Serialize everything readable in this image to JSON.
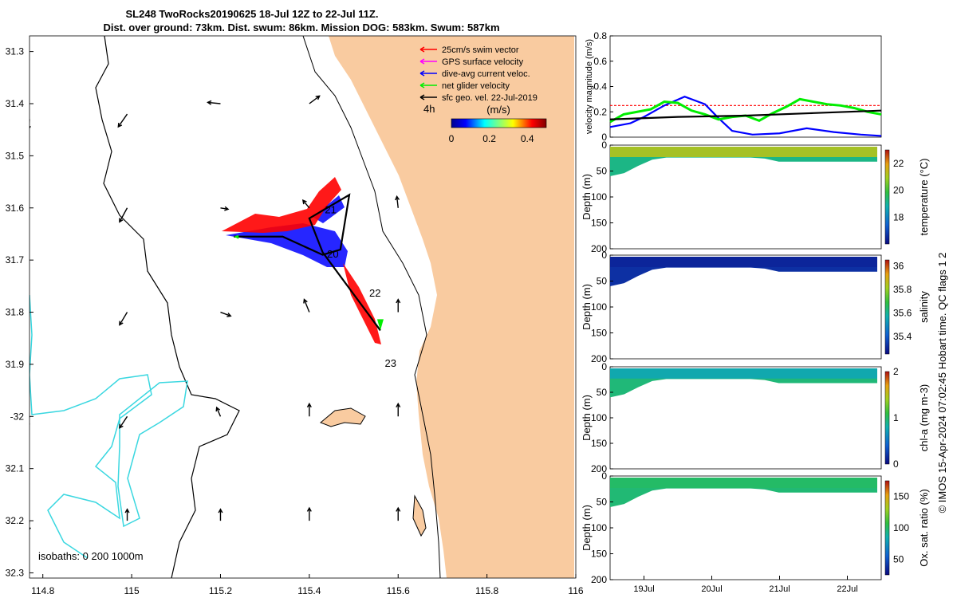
{
  "title": {
    "line1": "SL248 TwoRocks20190625 18-Jul 12Z to 22-Jul 11Z.",
    "line2": "Dist. over ground: 73km. Dist. swum: 86km. Mission DOG: 583km. Swum: 587km"
  },
  "credit": "© IMOS 15-Apr-2024 07:02:45 Hobart time. QC flags 1  2",
  "colors": {
    "land": "#f9cba0",
    "isobath_shallow": "#3ad7e0",
    "swim": "#ff0000",
    "gps": "#ff00ff",
    "current": "#0000ff",
    "net": "#00ee00",
    "geo": "#000000"
  },
  "chart_data": [
    {
      "type": "map",
      "name": "track-map",
      "xlim": [
        114.77,
        116.0
      ],
      "ylim": [
        -32.31,
        -31.27
      ],
      "xticks": [
        114.8,
        115,
        115.2,
        115.4,
        115.6,
        115.8,
        116
      ],
      "xtick_labels": [
        "114.8",
        "115",
        "115.2",
        "115.4",
        "115.6",
        "115.8",
        "116"
      ],
      "yticks": [
        -31.3,
        -31.4,
        -31.5,
        -31.6,
        -31.7,
        -31.8,
        -31.9,
        -32,
        -32.1,
        -32.2,
        -32.3
      ],
      "ytick_labels": [
        "31.3",
        "31.4",
        "31.5",
        "31.6",
        "31.7",
        "31.8",
        "31.9",
        "-32",
        "32.1",
        "32.2",
        "32.3"
      ],
      "legend": {
        "placement": "top-right",
        "entries": [
          {
            "label": "25cm/s swim vector",
            "color": "#ff0000"
          },
          {
            "label": "GPS surface velocity",
            "color": "#ff00ff"
          },
          {
            "label": "dive-avg current veloc.",
            "color": "#0000ff"
          },
          {
            "label": "net glider velocity",
            "color": "#00ee00"
          },
          {
            "label": "sfc geo. vel. 22-Jul-2019",
            "color": "#000000"
          }
        ],
        "note": "4h"
      },
      "colorbar": {
        "label": "(m/s)",
        "ticks": [
          "0",
          "0.2",
          "0.4"
        ],
        "range": [
          0,
          0.5
        ]
      },
      "isobaths_label": "isobaths: 0   200  1000m",
      "track": [
        {
          "lon": 115.23,
          "lat": -31.655
        },
        {
          "lon": 115.34,
          "lat": -31.655
        },
        {
          "lon": 115.43,
          "lat": -31.69
        },
        {
          "lon": 115.47,
          "lat": -31.68
        },
        {
          "lon": 115.49,
          "lat": -31.575
        },
        {
          "lon": 115.4,
          "lat": -31.62
        },
        {
          "lon": 115.43,
          "lat": -31.685
        },
        {
          "lon": 115.56,
          "lat": -31.835
        }
      ],
      "day_labels": [
        {
          "text": "21",
          "lon": 115.435,
          "lat": -31.61
        },
        {
          "text": "20",
          "lon": 115.44,
          "lat": -31.695
        },
        {
          "text": "22",
          "lon": 115.535,
          "lat": -31.77
        },
        {
          "text": "23",
          "lon": 115.57,
          "lat": -31.905
        }
      ],
      "geo_vectors": [
        {
          "lon": 114.77,
          "lat": -31.43,
          "u": -0.1,
          "v": -0.8
        },
        {
          "lon": 114.99,
          "lat": -31.42,
          "u": -0.7,
          "v": -1.0
        },
        {
          "lon": 115.2,
          "lat": -31.4,
          "u": -1.0,
          "v": 0.1
        },
        {
          "lon": 115.4,
          "lat": -31.4,
          "u": 0.8,
          "v": 0.6
        },
        {
          "lon": 115.6,
          "lat": -31.4,
          "u": 0.0,
          "v": 0.0
        },
        {
          "lon": 114.99,
          "lat": -31.6,
          "u": -0.6,
          "v": -1.1
        },
        {
          "lon": 115.2,
          "lat": -31.6,
          "u": 0.6,
          "v": -0.1
        },
        {
          "lon": 115.4,
          "lat": -31.6,
          "u": -0.5,
          "v": 0.6
        },
        {
          "lon": 115.6,
          "lat": -31.6,
          "u": -0.1,
          "v": 0.9
        },
        {
          "lon": 114.99,
          "lat": -31.8,
          "u": -0.6,
          "v": -1.0
        },
        {
          "lon": 115.2,
          "lat": -31.8,
          "u": 0.8,
          "v": -0.3
        },
        {
          "lon": 115.4,
          "lat": -31.8,
          "u": -0.4,
          "v": 1.0
        },
        {
          "lon": 115.6,
          "lat": -31.8,
          "u": 0.0,
          "v": 1.0
        },
        {
          "lon": 114.77,
          "lat": -32.0,
          "u": -0.2,
          "v": -0.8
        },
        {
          "lon": 114.99,
          "lat": -32.0,
          "u": -0.6,
          "v": -0.9
        },
        {
          "lon": 115.2,
          "lat": -32.0,
          "u": -0.3,
          "v": 0.7
        },
        {
          "lon": 115.4,
          "lat": -32.0,
          "u": 0.0,
          "v": 1.0
        },
        {
          "lon": 115.6,
          "lat": -32.0,
          "u": 0.0,
          "v": 1.0
        },
        {
          "lon": 114.77,
          "lat": -32.2,
          "u": -0.1,
          "v": -0.8
        },
        {
          "lon": 114.99,
          "lat": -32.2,
          "u": 0.0,
          "v": 0.9
        },
        {
          "lon": 115.2,
          "lat": -32.2,
          "u": 0.0,
          "v": 0.9
        },
        {
          "lon": 115.4,
          "lat": -32.2,
          "u": 0.0,
          "v": 1.0
        },
        {
          "lon": 115.6,
          "lat": -32.2,
          "u": 0.0,
          "v": 1.0
        }
      ]
    },
    {
      "type": "line",
      "name": "velocity-magnitude",
      "ylabel": "velocity magnitude (m/s)",
      "ylim": [
        0,
        0.8
      ],
      "yticks": [
        "0",
        "0.2",
        "0.4",
        "0.6",
        "0.8"
      ],
      "xlim": [
        18.5,
        22.5
      ],
      "series": [
        {
          "name": "swim",
          "color": "#ff0000",
          "style": "dashed",
          "x": [
            18.5,
            19,
            19.5,
            20,
            20.5,
            21,
            21.5,
            22,
            22.5
          ],
          "y": [
            0.25,
            0.25,
            0.25,
            0.25,
            0.25,
            0.25,
            0.25,
            0.25,
            0.25
          ]
        },
        {
          "name": "current",
          "color": "#0000ff",
          "x": [
            18.5,
            18.8,
            19.0,
            19.3,
            19.6,
            19.9,
            20.1,
            20.3,
            20.6,
            21.0,
            21.4,
            21.8,
            22.2,
            22.5
          ],
          "y": [
            0.08,
            0.11,
            0.16,
            0.25,
            0.32,
            0.26,
            0.15,
            0.05,
            0.02,
            0.03,
            0.07,
            0.04,
            0.02,
            0.01
          ]
        },
        {
          "name": "net",
          "color": "#00ee00",
          "x": [
            18.5,
            18.7,
            18.9,
            19.1,
            19.3,
            19.5,
            19.7,
            19.9,
            20.1,
            20.3,
            20.5,
            20.7,
            20.9,
            21.1,
            21.3,
            21.5,
            21.7,
            21.9,
            22.1,
            22.3,
            22.5
          ],
          "y": [
            0.12,
            0.18,
            0.2,
            0.22,
            0.28,
            0.27,
            0.21,
            0.18,
            0.14,
            0.16,
            0.17,
            0.13,
            0.19,
            0.24,
            0.3,
            0.28,
            0.26,
            0.25,
            0.23,
            0.2,
            0.18
          ]
        },
        {
          "name": "geo",
          "color": "#000000",
          "x": [
            18.5,
            19.5,
            20.5,
            21.5,
            22.5
          ],
          "y": [
            0.14,
            0.16,
            0.17,
            0.19,
            0.21
          ]
        }
      ]
    },
    {
      "type": "heatmap",
      "name": "temperature-section",
      "ylabel": "Depth (m)",
      "ylim": [
        0,
        200
      ],
      "yticks": [
        "0",
        "50",
        "100",
        "150",
        "200"
      ],
      "colorbar_label": "temperature (°C)",
      "colorbar_ticks": [
        "18",
        "20",
        "22"
      ],
      "clim": [
        16,
        23
      ],
      "surface_value": 21.2,
      "bottom_value": 19.2
    },
    {
      "type": "heatmap",
      "name": "salinity-section",
      "ylabel": "Depth (m)",
      "ylim": [
        0,
        200
      ],
      "yticks": [
        "0",
        "50",
        "100",
        "150",
        "200"
      ],
      "colorbar_label": "salinity",
      "colorbar_ticks": [
        "35.4",
        "35.6",
        "35.8",
        "36"
      ],
      "clim": [
        35.25,
        36.05
      ],
      "surface_value": 35.3,
      "bottom_value": 35.32
    },
    {
      "type": "heatmap",
      "name": "chla-section",
      "ylabel": "Depth (m)",
      "ylim": [
        0,
        200
      ],
      "yticks": [
        "0",
        "50",
        "100",
        "150",
        "200"
      ],
      "colorbar_label": "chl-a (mg m-3)",
      "colorbar_ticks": [
        "0",
        "1",
        "2"
      ],
      "clim": [
        0,
        2
      ],
      "surface_value": 0.75,
      "bottom_value": 0.95
    },
    {
      "type": "heatmap",
      "name": "oxygen-section",
      "ylabel": "Depth (m)",
      "ylim": [
        0,
        200
      ],
      "yticks": [
        "0",
        "50",
        "100",
        "150",
        "200"
      ],
      "colorbar_label": "Ox. sat. ratio (%)",
      "colorbar_ticks": [
        "50",
        "100",
        "150"
      ],
      "clim": [
        25,
        175
      ],
      "surface_value": 100,
      "bottom_value": 97
    }
  ],
  "time_axis": {
    "ticks": [
      "19Jul",
      "20Jul",
      "21Jul",
      "22Jul"
    ],
    "values": [
      19,
      20,
      21,
      22
    ]
  }
}
